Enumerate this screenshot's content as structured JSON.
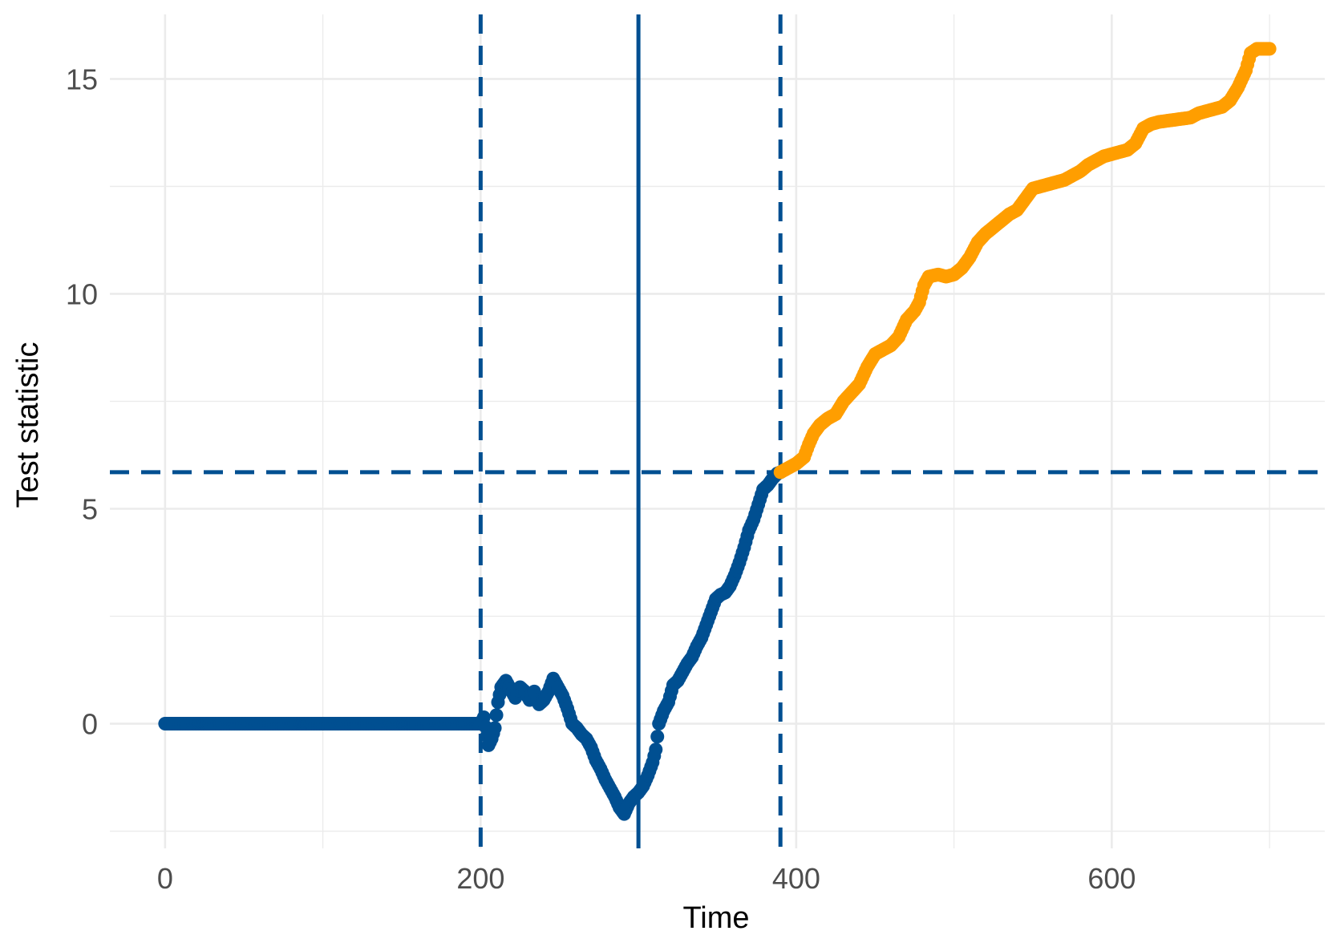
{
  "chart_data": {
    "type": "scatter",
    "title": "",
    "xlabel": "Time",
    "ylabel": "Test statistic",
    "xlim": [
      -35,
      735
    ],
    "ylim": [
      -2.9,
      16.5
    ],
    "x_ticks": [
      0,
      200,
      400,
      600
    ],
    "x_tick_labels": [
      "0",
      "200",
      "400",
      "600"
    ],
    "x_minor_ticks": [
      100,
      300,
      500,
      700
    ],
    "y_ticks": [
      0,
      5,
      10,
      15
    ],
    "y_tick_labels": [
      "0",
      "5",
      "10",
      "15"
    ],
    "y_minor_ticks": [
      -2.5,
      2.5,
      7.5,
      12.5
    ],
    "grid": true,
    "legend": "none",
    "reference_lines": {
      "vertical_solid": 300,
      "vertical_dashed": [
        200,
        390
      ],
      "horizontal_dashed": 5.85
    },
    "colors": {
      "before_threshold": "#004f91",
      "after_threshold": "#ff9e00",
      "lines": "#004f91"
    },
    "series": [
      {
        "color": "#004f91",
        "points": [
          [
            0,
            0
          ],
          [
            200,
            0
          ],
          [
            202,
            0.15
          ],
          [
            205,
            -0.5
          ],
          [
            207,
            -0.35
          ],
          [
            209,
            -0.1
          ],
          [
            211,
            0.5
          ],
          [
            213,
            0.85
          ],
          [
            216,
            1.0
          ],
          [
            219,
            0.8
          ],
          [
            222,
            0.6
          ],
          [
            225,
            0.85
          ],
          [
            228,
            0.75
          ],
          [
            231,
            0.55
          ],
          [
            234,
            0.75
          ],
          [
            237,
            0.45
          ],
          [
            240,
            0.55
          ],
          [
            243,
            0.75
          ],
          [
            246,
            1.05
          ],
          [
            249,
            0.85
          ],
          [
            252,
            0.65
          ],
          [
            255,
            0.35
          ],
          [
            258,
            0.0
          ],
          [
            261,
            -0.1
          ],
          [
            264,
            -0.25
          ],
          [
            267,
            -0.35
          ],
          [
            270,
            -0.55
          ],
          [
            273,
            -0.85
          ],
          [
            276,
            -1.05
          ],
          [
            279,
            -1.3
          ],
          [
            282,
            -1.5
          ],
          [
            285,
            -1.7
          ],
          [
            288,
            -1.95
          ],
          [
            291,
            -2.1
          ],
          [
            294,
            -1.85
          ],
          [
            297,
            -1.7
          ],
          [
            300,
            -1.6
          ],
          [
            303,
            -1.45
          ],
          [
            306,
            -1.2
          ],
          [
            309,
            -0.9
          ],
          [
            311,
            -0.6
          ],
          [
            313,
            0.0
          ],
          [
            316,
            0.3
          ],
          [
            319,
            0.5
          ],
          [
            322,
            0.9
          ],
          [
            325,
            1.0
          ],
          [
            328,
            1.2
          ],
          [
            331,
            1.4
          ],
          [
            334,
            1.55
          ],
          [
            337,
            1.8
          ],
          [
            340,
            2.0
          ],
          [
            343,
            2.3
          ],
          [
            346,
            2.6
          ],
          [
            349,
            2.9
          ],
          [
            352,
            3.0
          ],
          [
            355,
            3.05
          ],
          [
            358,
            3.2
          ],
          [
            361,
            3.45
          ],
          [
            364,
            3.75
          ],
          [
            367,
            4.1
          ],
          [
            370,
            4.5
          ],
          [
            373,
            4.75
          ],
          [
            376,
            5.1
          ],
          [
            379,
            5.45
          ],
          [
            382,
            5.55
          ],
          [
            385,
            5.7
          ],
          [
            388,
            5.82
          ],
          [
            390,
            5.85
          ]
        ]
      },
      {
        "color": "#ff9e00",
        "points": [
          [
            390,
            5.85
          ],
          [
            395,
            5.95
          ],
          [
            400,
            6.05
          ],
          [
            405,
            6.2
          ],
          [
            408,
            6.5
          ],
          [
            411,
            6.75
          ],
          [
            415,
            6.95
          ],
          [
            420,
            7.1
          ],
          [
            425,
            7.2
          ],
          [
            430,
            7.5
          ],
          [
            435,
            7.7
          ],
          [
            440,
            7.9
          ],
          [
            445,
            8.3
          ],
          [
            450,
            8.6
          ],
          [
            455,
            8.7
          ],
          [
            460,
            8.8
          ],
          [
            465,
            9.0
          ],
          [
            470,
            9.4
          ],
          [
            475,
            9.6
          ],
          [
            478,
            9.8
          ],
          [
            481,
            10.2
          ],
          [
            484,
            10.4
          ],
          [
            490,
            10.45
          ],
          [
            495,
            10.4
          ],
          [
            500,
            10.45
          ],
          [
            505,
            10.6
          ],
          [
            510,
            10.85
          ],
          [
            515,
            11.2
          ],
          [
            520,
            11.4
          ],
          [
            525,
            11.55
          ],
          [
            530,
            11.7
          ],
          [
            535,
            11.85
          ],
          [
            540,
            11.95
          ],
          [
            545,
            12.2
          ],
          [
            550,
            12.45
          ],
          [
            555,
            12.5
          ],
          [
            560,
            12.55
          ],
          [
            565,
            12.6
          ],
          [
            570,
            12.65
          ],
          [
            575,
            12.75
          ],
          [
            580,
            12.85
          ],
          [
            585,
            13.0
          ],
          [
            590,
            13.1
          ],
          [
            595,
            13.2
          ],
          [
            600,
            13.25
          ],
          [
            605,
            13.3
          ],
          [
            610,
            13.35
          ],
          [
            615,
            13.5
          ],
          [
            620,
            13.85
          ],
          [
            625,
            13.95
          ],
          [
            630,
            14.0
          ],
          [
            640,
            14.05
          ],
          [
            650,
            14.1
          ],
          [
            655,
            14.2
          ],
          [
            660,
            14.25
          ],
          [
            665,
            14.3
          ],
          [
            670,
            14.35
          ],
          [
            675,
            14.5
          ],
          [
            680,
            14.8
          ],
          [
            685,
            15.2
          ],
          [
            688,
            15.6
          ],
          [
            692,
            15.7
          ],
          [
            700,
            15.7
          ]
        ]
      }
    ]
  }
}
